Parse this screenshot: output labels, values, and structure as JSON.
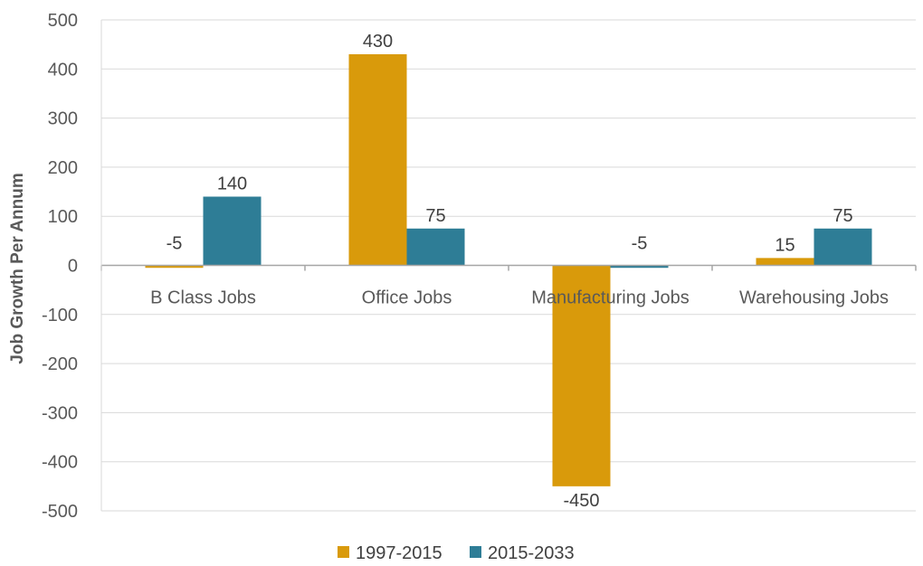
{
  "chart_data": {
    "type": "bar",
    "categories": [
      "B Class Jobs",
      "Office Jobs",
      "Manufacturing Jobs",
      "Warehousing Jobs"
    ],
    "series": [
      {
        "name": "1997-2015",
        "values": [
          -5,
          430,
          -450,
          15
        ],
        "color": "#D99A0B"
      },
      {
        "name": "2015-2033",
        "values": [
          140,
          75,
          -5,
          75
        ],
        "color": "#2E7D96"
      }
    ],
    "title": "",
    "xlabel": "",
    "ylabel": "Job Growth Per Annum",
    "ylim": [
      -500,
      500
    ],
    "yticks": [
      500,
      400,
      300,
      200,
      100,
      0,
      -100,
      -200,
      -300,
      -400,
      -500
    ],
    "grid": true,
    "legend_position": "bottom"
  }
}
